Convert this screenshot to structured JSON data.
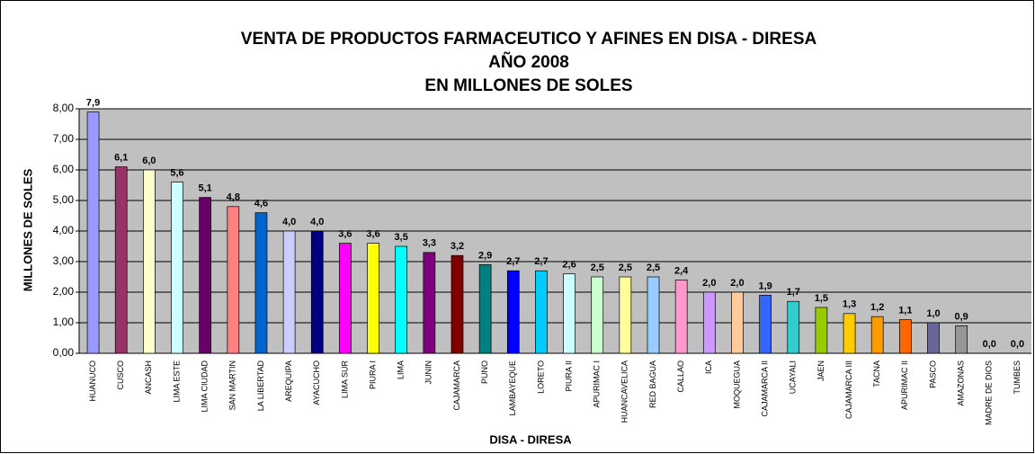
{
  "chart_data": {
    "type": "bar",
    "title": [
      "VENTA DE PRODUCTOS FARMACEUTICO Y AFINES EN DISA - DIRESA",
      "AÑO 2008",
      "EN MILLONES DE SOLES"
    ],
    "x_label": "DISA - DIRESA",
    "y_label": "MILLONES DE SOLES",
    "categories": [
      "HUANUCO",
      "CUSCO",
      "ANCASH",
      "LIMA ESTE",
      "LIMA CIUDAD",
      "SAN MARTIN",
      "LA LIBERTAD",
      "AREQUIPA",
      "AYACUCHO",
      "LIMA SUR",
      "PIURA I",
      "LIMA",
      "JUNIN",
      "CAJAMARCA",
      "PUNO",
      "LAMBAYEQUE",
      "LORETO",
      "PIURA II",
      "APURIMAC I",
      "HUANCAVELICA",
      "RED BAGUA",
      "CALLAO",
      "ICA",
      "MOQUEGUA",
      "CAJAMARCA II",
      "UCAYALI",
      "JAEN",
      "CAJAMARCA III",
      "TACNA",
      "APURIMAC II",
      "PASCO",
      "AMAZONAS",
      "MADRE DE DIOS",
      "TUMBES"
    ],
    "values": [
      7.9,
      6.1,
      6.0,
      5.6,
      5.1,
      4.8,
      4.6,
      4.0,
      4.0,
      3.6,
      3.6,
      3.5,
      3.3,
      3.2,
      2.9,
      2.7,
      2.7,
      2.6,
      2.5,
      2.5,
      2.5,
      2.4,
      2.0,
      2.0,
      1.9,
      1.7,
      1.5,
      1.3,
      1.2,
      1.1,
      1.0,
      0.9,
      0.0,
      0.0
    ],
    "value_labels": [
      "7,9",
      "6,1",
      "6,0",
      "5,6",
      "5,1",
      "4,8",
      "4,6",
      "4,0",
      "4,0",
      "3,6",
      "3,6",
      "3,5",
      "3,3",
      "3,2",
      "2,9",
      "2,7",
      "2,7",
      "2,6",
      "2,5",
      "2,5",
      "2,5",
      "2,4",
      "2,0",
      "2,0",
      "1,9",
      "1,7",
      "1,5",
      "1,3",
      "1,2",
      "1,1",
      "1,0",
      "0,9",
      "0,0",
      "0,0"
    ],
    "colors": [
      "#9999ff",
      "#993366",
      "#ffffcc",
      "#ccffff",
      "#660066",
      "#ff8080",
      "#0066cc",
      "#ccccff",
      "#000080",
      "#ff00ff",
      "#ffff00",
      "#00ffff",
      "#800080",
      "#800000",
      "#008080",
      "#0000ff",
      "#00ccff",
      "#ccffff",
      "#ccffcc",
      "#ffff99",
      "#99ccff",
      "#ff99cc",
      "#cc99ff",
      "#ffcc99",
      "#3366ff",
      "#33cccc",
      "#99cc00",
      "#ffcc00",
      "#ff9900",
      "#ff6600",
      "#666699",
      "#969696",
      "#003366",
      "#339966"
    ],
    "ylim": [
      0,
      8
    ],
    "yticks": [
      {
        "value": 0,
        "label": "0,00"
      },
      {
        "value": 1,
        "label": "1,00"
      },
      {
        "value": 2,
        "label": "2,00"
      },
      {
        "value": 3,
        "label": "3,00"
      },
      {
        "value": 4,
        "label": "4,00"
      },
      {
        "value": 5,
        "label": "5,00"
      },
      {
        "value": 6,
        "label": "6,00"
      },
      {
        "value": 7,
        "label": "7,00"
      },
      {
        "value": 8,
        "label": "8,00"
      }
    ],
    "grid": true
  }
}
